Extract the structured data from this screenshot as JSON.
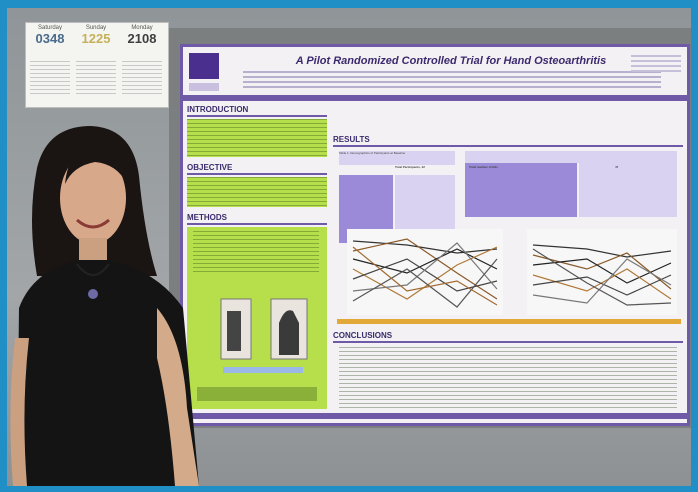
{
  "counter_board": {
    "columns": [
      {
        "heading": "Saturday",
        "value": "0348",
        "color": "#4a6b8c"
      },
      {
        "heading": "Sunday",
        "value": "1225",
        "color": "#c6b15a"
      },
      {
        "heading": "Monday",
        "value": "2108",
        "color": "#3f3f3f"
      }
    ]
  },
  "poster": {
    "title": "A Pilot Randomized Controlled Trial for Hand Osteoarthritis",
    "sections": {
      "introduction": "INTRODUCTION",
      "objective": "OBJECTIVE",
      "methods": "METHODS",
      "results": "RESULTS",
      "conclusions": "CONCLUSIONS"
    },
    "table_header": "Table 1. Demographics of Participants at Baseline",
    "table_col": "Total Participants, 42",
    "table2_row": "Total number of Hits",
    "table2_value": "47"
  },
  "colors": {
    "frame": "#1f8fc6",
    "poster_accent": "#6f5aa8",
    "green_box": "#b6df4b",
    "table_purple": "#9a8ad8"
  }
}
